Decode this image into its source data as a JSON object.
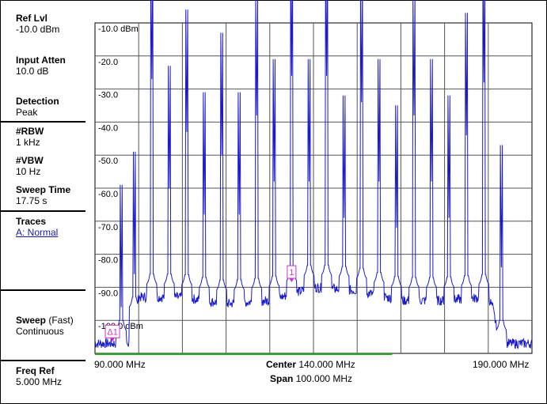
{
  "sidebar": {
    "ref_lvl": {
      "title": "Ref Lvl",
      "value": "-10.0 dBm"
    },
    "input_atten": {
      "title": "Input Atten",
      "value": "10.0 dB"
    },
    "detection": {
      "title": "Detection",
      "value": "Peak"
    },
    "rbw": {
      "title": "#RBW",
      "value": "1 kHz"
    },
    "vbw": {
      "title": "#VBW",
      "value": "10 Hz"
    },
    "sweep_time": {
      "title": "Sweep Time",
      "value": "17.75 s"
    },
    "traces": {
      "title": "Traces",
      "value": "A: Normal"
    },
    "sweep": {
      "title": "Sweep",
      "mode": "(Fast)",
      "value": "Continuous"
    },
    "freq_ref": {
      "title": "Freq Ref",
      "value": "5.000 MHz"
    }
  },
  "plot": {
    "y_labels": [
      "-10.0 dBm",
      "-20.0",
      "-30.0",
      "-40.0",
      "-50.0",
      "-60.0",
      "-70.0",
      "-80.0",
      "-90.0",
      "-100.0 dBm"
    ],
    "marker_label": "1",
    "delta_marker_label": "Δ1",
    "trace_color": "#1a1acc",
    "marker_color": "#cc33cc",
    "sweep_bar_color": "#22aa22"
  },
  "bottom": {
    "start_freq": "90.000 MHz",
    "stop_freq": "190.000 MHz",
    "center_label": "Center",
    "center_value": "140.000 MHz",
    "span_label": "Span",
    "span_value": "100.000 MHz"
  },
  "chart_data": {
    "type": "line",
    "xlabel": "",
    "ylabel": "",
    "x_unit": "MHz",
    "y_unit": "dBm",
    "xlim": [
      90,
      190
    ],
    "ylim": [
      -110,
      -10
    ],
    "grid": true,
    "noise_floor": [
      {
        "x": 90,
        "y": -107
      },
      {
        "x": 98,
        "y": -107
      },
      {
        "x": 99,
        "y": -100
      },
      {
        "x": 100,
        "y": -93
      },
      {
        "x": 110,
        "y": -93
      },
      {
        "x": 120,
        "y": -95
      },
      {
        "x": 130,
        "y": -94
      },
      {
        "x": 140,
        "y": -90
      },
      {
        "x": 150,
        "y": -91
      },
      {
        "x": 160,
        "y": -94
      },
      {
        "x": 170,
        "y": -94
      },
      {
        "x": 180,
        "y": -93
      },
      {
        "x": 181,
        "y": -96
      },
      {
        "x": 182,
        "y": -103
      },
      {
        "x": 183,
        "y": -107
      },
      {
        "x": 190,
        "y": -107
      }
    ],
    "series": [
      {
        "values": [
          {
            "x": 96,
            "y": -96
          },
          {
            "x": 99,
            "y": -86
          },
          {
            "x": 103,
            "y": -27
          },
          {
            "x": 107,
            "y": -60
          },
          {
            "x": 111,
            "y": -43
          },
          {
            "x": 115,
            "y": -68
          },
          {
            "x": 119,
            "y": -50
          },
          {
            "x": 123,
            "y": -68
          },
          {
            "x": 127,
            "y": -38
          },
          {
            "x": 131,
            "y": -58
          },
          {
            "x": 135,
            "y": -26
          },
          {
            "x": 139,
            "y": -58
          },
          {
            "x": 143,
            "y": -26
          },
          {
            "x": 147,
            "y": -69
          },
          {
            "x": 151,
            "y": -34
          },
          {
            "x": 155,
            "y": -58
          },
          {
            "x": 159,
            "y": -72
          },
          {
            "x": 163,
            "y": -38
          },
          {
            "x": 167,
            "y": -58
          },
          {
            "x": 171,
            "y": -69
          },
          {
            "x": 175,
            "y": -44
          },
          {
            "x": 179,
            "y": -28
          },
          {
            "x": 183,
            "y": -84
          }
        ]
      }
    ],
    "markers": [
      {
        "label": "1",
        "x": 135,
        "y": -88
      },
      {
        "label": "Δ1",
        "x": 94,
        "y": -106
      }
    ]
  }
}
